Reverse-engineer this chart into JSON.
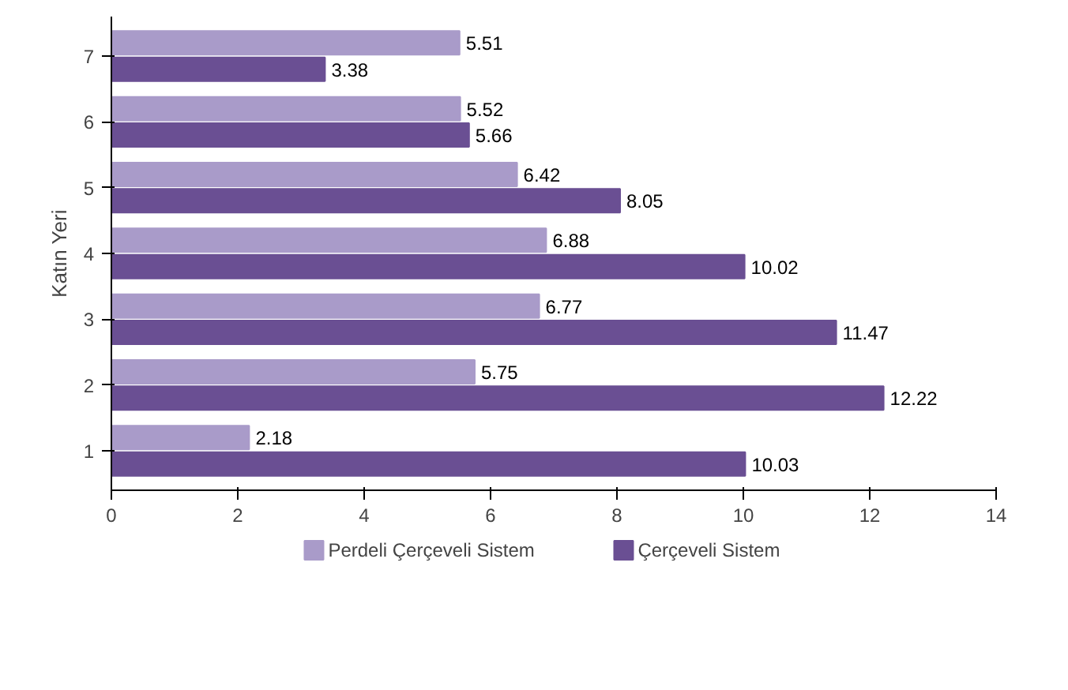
{
  "chart_data": {
    "type": "bar",
    "orientation": "horizontal",
    "ylabel": "Katın Yeri",
    "categories": [
      "7",
      "6",
      "5",
      "4",
      "3",
      "2",
      "1"
    ],
    "series": [
      {
        "name": "Perdeli Çerçeveli Sistem",
        "color": "#a99bc9",
        "values": [
          5.51,
          5.52,
          6.42,
          6.88,
          6.77,
          5.75,
          2.18
        ]
      },
      {
        "name": "Çerçeveli Sistem",
        "color": "#6a4f93",
        "values": [
          3.38,
          5.66,
          8.05,
          10.02,
          11.47,
          12.22,
          10.03
        ]
      }
    ],
    "xlim": [
      0,
      14
    ],
    "xticks": [
      0,
      2,
      4,
      6,
      8,
      10,
      12,
      14
    ],
    "data_labels": true,
    "grid": false,
    "legend": "bottom"
  }
}
